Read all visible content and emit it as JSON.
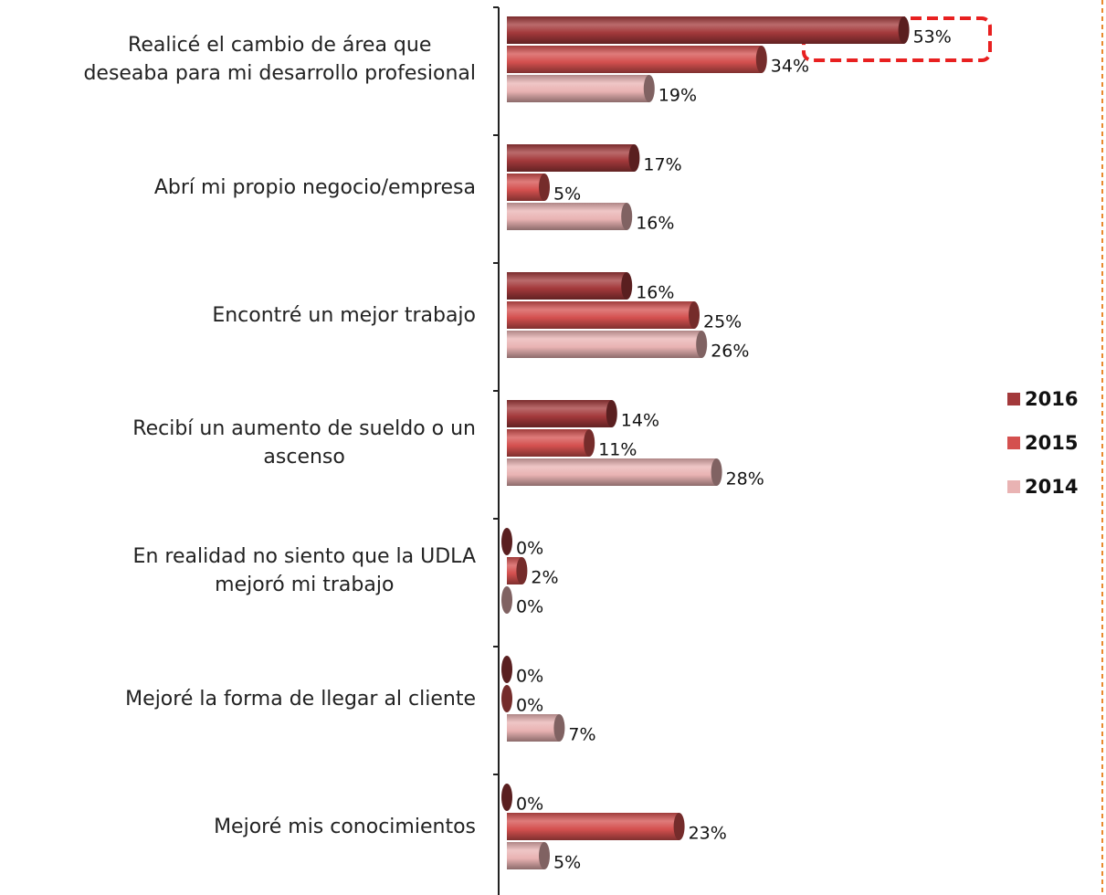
{
  "chart_data": {
    "type": "bar",
    "orientation": "horizontal",
    "categories": [
      "Realicé el cambio de área que\ndeseaba para mi desarrollo profesional",
      "Abrí mi propio negocio/empresa",
      "Encontré un mejor trabajo",
      "Recibí un aumento de sueldo o un\nascenso",
      "En realidad no siento que la UDLA\nmejoró mi trabajo",
      "Mejoré la forma de llegar al cliente",
      "Mejoré mis conocimientos"
    ],
    "series": [
      {
        "name": "2016",
        "color": "#a3393b",
        "values": [
          53,
          17,
          16,
          14,
          0,
          0,
          0
        ],
        "value_labels": [
          "53%",
          "17%",
          "16%",
          "14%",
          "0%",
          "0%",
          "0%"
        ]
      },
      {
        "name": "2015",
        "color": "#d4504f",
        "values": [
          34,
          5,
          25,
          11,
          2,
          0,
          23
        ],
        "value_labels": [
          "34%",
          "5%",
          "25%",
          "11%",
          "2%",
          "0%",
          "23%"
        ]
      },
      {
        "name": "2014",
        "color": "#e9b3b3",
        "values": [
          19,
          16,
          26,
          28,
          0,
          7,
          5
        ],
        "value_labels": [
          "19%",
          "16%",
          "26%",
          "28%",
          "0%",
          "7%",
          "5%"
        ]
      }
    ],
    "legend": "right"
  }
}
